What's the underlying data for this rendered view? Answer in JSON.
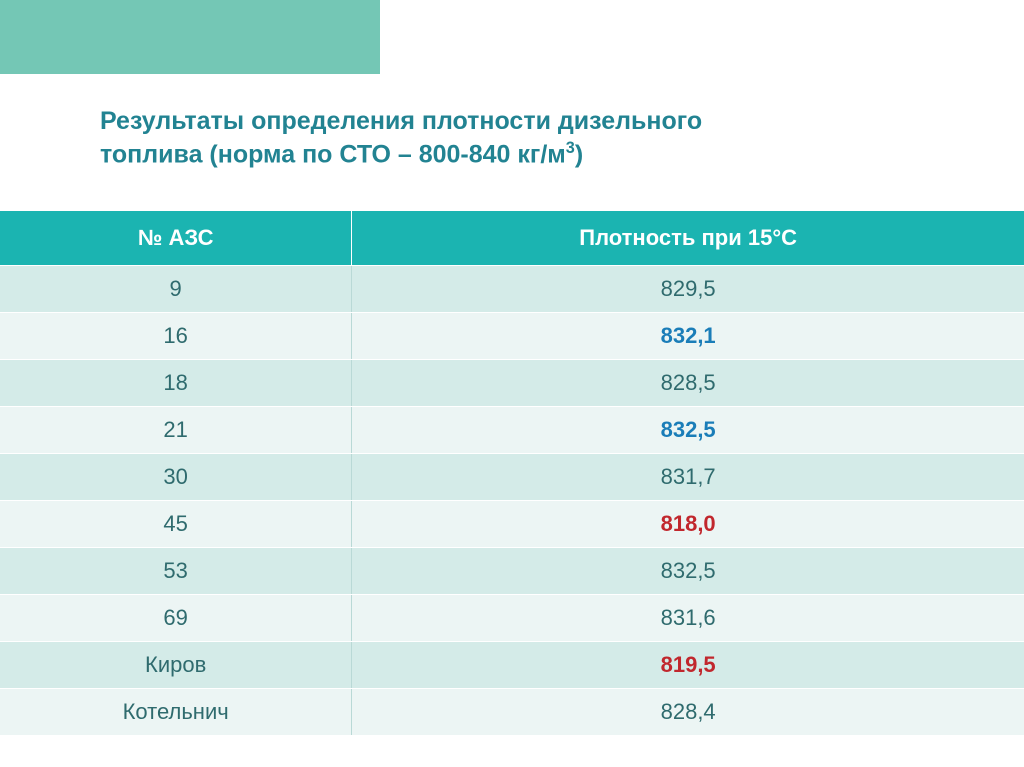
{
  "title_line1": "Результаты определения плотности дизельного",
  "title_line2_before": "топлива (норма по СТО – 800-840 кг/м",
  "title_line2_sup": "3",
  "title_line2_after": ")",
  "table": {
    "col1_header": "№ АЗС",
    "col2_header": "Плотность при 15°С",
    "rows": [
      {
        "station": "9",
        "density": "829,5",
        "style": "normal"
      },
      {
        "station": "16",
        "density": "832,1",
        "style": "blue"
      },
      {
        "station": "18",
        "density": "828,5",
        "style": "normal"
      },
      {
        "station": "21",
        "density": "832,5",
        "style": "blue"
      },
      {
        "station": "30",
        "density": "831,7",
        "style": "normal"
      },
      {
        "station": "45",
        "density": "818,0",
        "style": "red"
      },
      {
        "station": "53",
        "density": "832,5",
        "style": "normal"
      },
      {
        "station": "69",
        "density": "831,6",
        "style": "normal"
      },
      {
        "station": "Киров",
        "density": "819,5",
        "style": "red"
      },
      {
        "station": "Котельнич",
        "density": "828,4",
        "style": "normal"
      }
    ]
  },
  "colors": {
    "decor_block": "#74c7b5",
    "title": "#228392",
    "header_bg": "#1bb4b1",
    "row_odd": "#d4ebe8",
    "row_even": "#ecf5f4",
    "text_normal": "#2f6b6e",
    "text_blue": "#1a7db8",
    "text_red": "#c1272d"
  }
}
